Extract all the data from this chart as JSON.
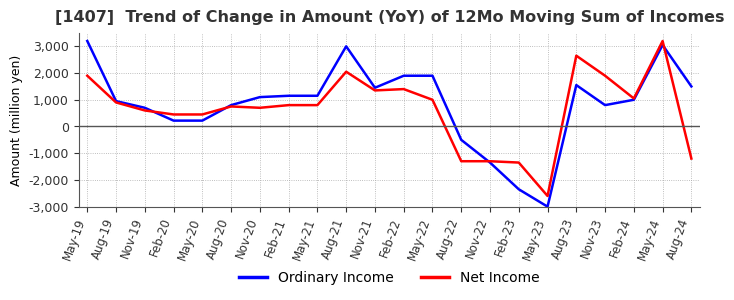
{
  "title": "[1407]  Trend of Change in Amount (YoY) of 12Mo Moving Sum of Incomes",
  "ylabel": "Amount (million yen)",
  "ylim": [
    -3000,
    3500
  ],
  "yticks": [
    -3000,
    -2000,
    -1000,
    0,
    1000,
    2000,
    3000
  ],
  "legend_labels": [
    "Ordinary Income",
    "Net Income"
  ],
  "line_colors": [
    "#0000ff",
    "#ff0000"
  ],
  "background_color": "#ffffff",
  "plot_bg_color": "#ffffff",
  "grid_color": "#aaaaaa",
  "x_labels": [
    "May-19",
    "Aug-19",
    "Nov-19",
    "Feb-20",
    "May-20",
    "Aug-20",
    "Nov-20",
    "Feb-21",
    "May-21",
    "Aug-21",
    "Nov-21",
    "Feb-22",
    "May-22",
    "Aug-22",
    "Nov-22",
    "Feb-23",
    "May-23",
    "Aug-23",
    "Nov-23",
    "Feb-24",
    "May-24",
    "Aug-24"
  ],
  "ordinary_income": [
    3200,
    950,
    700,
    220,
    220,
    800,
    1100,
    1150,
    1150,
    3000,
    1450,
    1900,
    1900,
    -500,
    -1350,
    -2350,
    -3000,
    1550,
    800,
    1000,
    3050,
    1500
  ],
  "net_income": [
    1900,
    900,
    600,
    450,
    450,
    750,
    700,
    800,
    800,
    2050,
    1350,
    1400,
    1000,
    -1300,
    -1300,
    -1350,
    -2600,
    2650,
    1900,
    1050,
    3200,
    -1200
  ]
}
